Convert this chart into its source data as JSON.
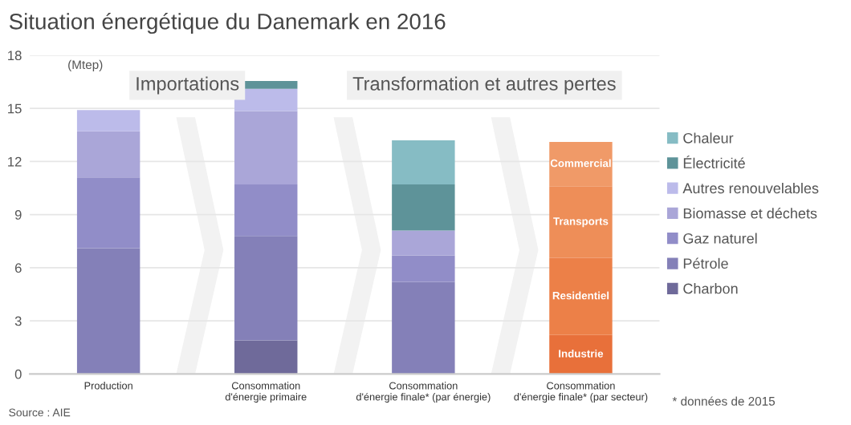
{
  "chart_data": {
    "type": "bar",
    "stacked": true,
    "title": "Situation énergétique du Danemark en 2016",
    "ylabel": "(Mtep)",
    "categories": [
      "Production",
      "Consommation\nd'énergie primaire",
      "Consommation\nd'énergie finale* (par énergie)",
      "Consommation\nd'énergie finale* (par secteur)"
    ],
    "series": [
      {
        "name": "Charbon",
        "color": "#6f6a9a",
        "values": [
          0,
          1.9,
          0,
          0
        ]
      },
      {
        "name": "Pétrole",
        "color": "#8480b8",
        "values": [
          7.1,
          5.9,
          5.2,
          0
        ]
      },
      {
        "name": "Gaz naturel",
        "color": "#918dc8",
        "values": [
          4.0,
          2.9,
          1.5,
          0
        ]
      },
      {
        "name": "Biomasse et déchets",
        "color": "#aaa6d8",
        "values": [
          2.6,
          4.15,
          1.4,
          0
        ]
      },
      {
        "name": "Autres renouvelables",
        "color": "#bcbbea",
        "values": [
          1.2,
          1.25,
          0,
          0
        ]
      },
      {
        "name": "Électricité",
        "color": "#5e9399",
        "values": [
          0,
          0.45,
          2.6,
          0
        ]
      },
      {
        "name": "Chaleur",
        "color": "#86bcc4",
        "values": [
          0,
          0,
          2.5,
          0
        ]
      },
      {
        "name": "Industrie",
        "color": "#e8703a",
        "values": [
          null,
          null,
          null,
          2.2
        ]
      },
      {
        "name": "Residentiel",
        "color": "#ec8048",
        "values": [
          null,
          null,
          null,
          4.35
        ]
      },
      {
        "name": "Transports",
        "color": "#ee8e58",
        "values": [
          null,
          null,
          null,
          4.05
        ]
      },
      {
        "name": "Commercial",
        "color": "#f09a68",
        "values": [
          null,
          null,
          null,
          2.5
        ]
      }
    ],
    "ylim": [
      0,
      18
    ],
    "yticks": [
      0,
      3,
      6,
      9,
      12,
      15,
      18
    ],
    "grid": "y",
    "legend": "right",
    "annotations": [
      "Importations",
      "Transformation et autres pertes",
      "* données de 2015",
      "Source : AIE"
    ]
  }
}
